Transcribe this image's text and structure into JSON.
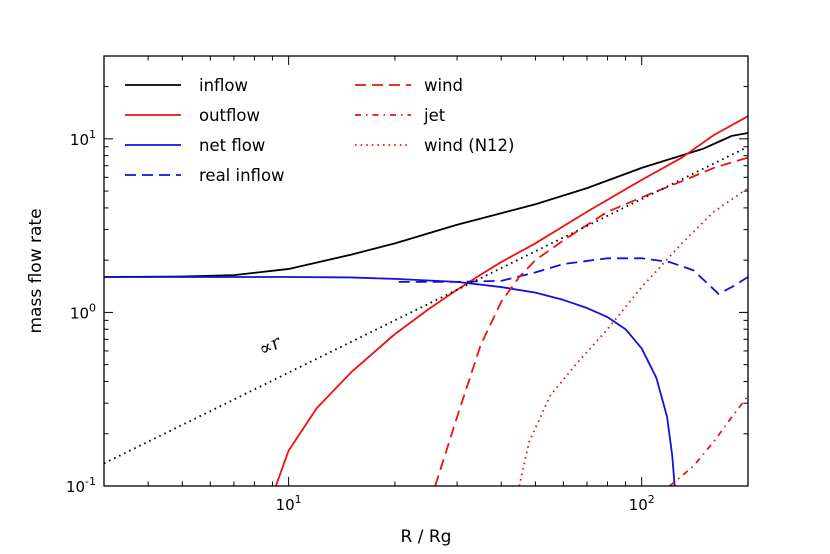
{
  "chart_data": {
    "type": "line",
    "xscale": "log",
    "yscale": "log",
    "xlim": [
      3,
      200
    ],
    "ylim": [
      0.1,
      30
    ],
    "xlabel": "R / Rg",
    "ylabel": "mass flow rate",
    "x_ticks": [
      {
        "value": 10,
        "base": "10",
        "exp": "1"
      },
      {
        "value": 100,
        "base": "10",
        "exp": "2"
      }
    ],
    "y_ticks": [
      {
        "value": 0.1,
        "base": "10",
        "exp": "-1"
      },
      {
        "value": 1,
        "base": "10",
        "exp": "0"
      },
      {
        "value": 10,
        "base": "10",
        "exp": "1"
      }
    ],
    "annotation": {
      "text": "∝r",
      "x": 9,
      "y": 0.55
    },
    "series": [
      {
        "name": "inflow",
        "color": "#000000",
        "style": "solid",
        "points": [
          [
            3,
            1.6
          ],
          [
            5,
            1.61
          ],
          [
            7,
            1.64
          ],
          [
            10,
            1.78
          ],
          [
            15,
            2.15
          ],
          [
            20,
            2.5
          ],
          [
            30,
            3.2
          ],
          [
            50,
            4.2
          ],
          [
            70,
            5.2
          ],
          [
            100,
            6.8
          ],
          [
            150,
            8.8
          ],
          [
            180,
            10.4
          ],
          [
            200,
            10.8
          ]
        ]
      },
      {
        "name": "outflow",
        "color": "#ee1111",
        "style": "solid",
        "points": [
          [
            9.2,
            0.1
          ],
          [
            10,
            0.16
          ],
          [
            12,
            0.28
          ],
          [
            15,
            0.45
          ],
          [
            20,
            0.75
          ],
          [
            25,
            1.05
          ],
          [
            30,
            1.35
          ],
          [
            35,
            1.65
          ],
          [
            40,
            1.95
          ],
          [
            50,
            2.5
          ],
          [
            70,
            3.8
          ],
          [
            100,
            5.8
          ],
          [
            130,
            7.8
          ],
          [
            160,
            10.5
          ],
          [
            200,
            13.5
          ]
        ]
      },
      {
        "name": "net flow",
        "color": "#1111dd",
        "style": "solid",
        "points": [
          [
            3,
            1.6
          ],
          [
            7,
            1.6
          ],
          [
            10,
            1.6
          ],
          [
            15,
            1.59
          ],
          [
            20,
            1.56
          ],
          [
            30,
            1.5
          ],
          [
            40,
            1.4
          ],
          [
            50,
            1.3
          ],
          [
            60,
            1.18
          ],
          [
            70,
            1.06
          ],
          [
            80,
            0.94
          ],
          [
            90,
            0.8
          ],
          [
            100,
            0.62
          ],
          [
            110,
            0.42
          ],
          [
            118,
            0.25
          ],
          [
            122,
            0.15
          ],
          [
            124,
            0.1
          ]
        ]
      },
      {
        "name": "real inflow",
        "color": "#1111dd",
        "style": "dashed",
        "points": [
          [
            20.5,
            1.5
          ],
          [
            30,
            1.5
          ],
          [
            40,
            1.52
          ],
          [
            50,
            1.7
          ],
          [
            60,
            1.9
          ],
          [
            80,
            2.05
          ],
          [
            100,
            2.05
          ],
          [
            120,
            1.95
          ],
          [
            140,
            1.75
          ],
          [
            165,
            1.28
          ],
          [
            180,
            1.4
          ],
          [
            200,
            1.6
          ]
        ]
      },
      {
        "name": "wind",
        "color": "#ee1111",
        "style": "dashed",
        "points": [
          [
            26,
            0.1
          ],
          [
            30,
            0.25
          ],
          [
            35,
            0.65
          ],
          [
            40,
            1.15
          ],
          [
            45,
            1.6
          ],
          [
            50,
            2.0
          ],
          [
            60,
            2.6
          ],
          [
            80,
            3.8
          ],
          [
            100,
            4.6
          ],
          [
            130,
            5.7
          ],
          [
            160,
            6.8
          ],
          [
            200,
            7.8
          ]
        ]
      },
      {
        "name": "jet",
        "color": "#ee1111",
        "style": "dashdot",
        "points": [
          [
            120,
            0.1
          ],
          [
            140,
            0.13
          ],
          [
            160,
            0.18
          ],
          [
            180,
            0.25
          ],
          [
            200,
            0.33
          ]
        ]
      },
      {
        "name": "wind (N12)",
        "color": "#ee1111",
        "style": "dotted",
        "points": [
          [
            45,
            0.1
          ],
          [
            48,
            0.18
          ],
          [
            55,
            0.33
          ],
          [
            65,
            0.5
          ],
          [
            80,
            0.8
          ],
          [
            100,
            1.4
          ],
          [
            130,
            2.5
          ],
          [
            160,
            3.8
          ],
          [
            200,
            5.2
          ]
        ]
      },
      {
        "name": "∝r",
        "color": "#000000",
        "style": "dotted-fine",
        "in_legend": false,
        "points": [
          [
            3,
            0.135
          ],
          [
            200,
            9.0
          ]
        ]
      }
    ]
  }
}
